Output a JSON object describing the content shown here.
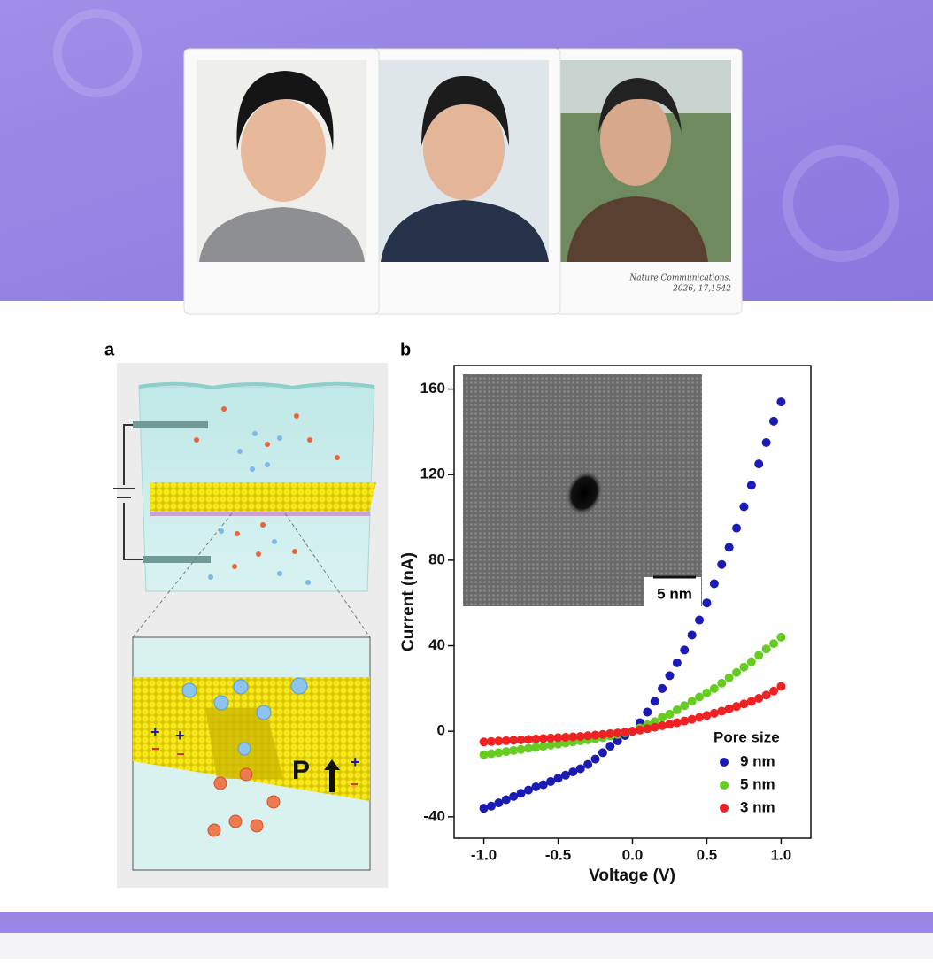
{
  "banner": {
    "caption_lines": [
      "Nature Communications,",
      "2026, 17,1542"
    ]
  },
  "panels": [
    "a",
    "b"
  ],
  "diagram": {
    "polarization_label": "P",
    "charge_label": "+"
  },
  "inset": {
    "scale_bar": "5 nm"
  },
  "chart_data": {
    "type": "scatter",
    "x_label": "Voltage (V)",
    "y_label": "Current (nA)",
    "legend_title": "Pore size",
    "legend_position": "lower right",
    "xlim": [
      -1.2,
      1.2
    ],
    "ylim": [
      -50,
      171
    ],
    "xticks": [
      {
        "value": -1,
        "label": "-1.0"
      },
      {
        "value": -0.5,
        "label": "-0.5"
      },
      {
        "value": 0,
        "label": "0.0"
      },
      0.5,
      {
        "value": 1,
        "label": "1.0"
      }
    ],
    "yticks": [
      -40,
      0,
      40,
      80,
      120,
      160
    ],
    "x": [
      -1,
      -0.95,
      -0.9,
      -0.85,
      -0.8,
      -0.75,
      -0.7,
      -0.65,
      -0.6,
      -0.55,
      -0.5,
      -0.45,
      -0.4,
      -0.35,
      -0.3,
      -0.25,
      -0.2,
      -0.15,
      -0.1,
      -0.05,
      0,
      0.05,
      0.1,
      0.15,
      0.2,
      0.25,
      0.3,
      0.35,
      0.4,
      0.45,
      0.5,
      0.55,
      0.6,
      0.65,
      0.7,
      0.75,
      0.8,
      0.85,
      0.9,
      0.95,
      1
    ],
    "series": [
      {
        "name": "9 nm",
        "color": "#1a1ab4",
        "values": [
          -36,
          -35,
          -33.5,
          -32,
          -30.5,
          -29,
          -27.5,
          -26,
          -25,
          -23.5,
          -22,
          -20.5,
          -19,
          -17.5,
          -15.5,
          -13,
          -10,
          -7,
          -4.5,
          -2,
          0,
          4,
          9,
          14,
          20,
          26,
          32,
          38,
          45,
          52,
          60,
          69,
          78,
          86,
          95,
          105,
          115,
          125,
          135,
          145,
          154
        ]
      },
      {
        "name": "5 nm",
        "color": "#66cc22",
        "values": [
          -11,
          -10.5,
          -10,
          -9.5,
          -9,
          -8.5,
          -8,
          -7.5,
          -7,
          -6.5,
          -6,
          -5.5,
          -5,
          -4.5,
          -4,
          -3.5,
          -3,
          -2.2,
          -1.5,
          -0.7,
          0,
          1.5,
          3,
          4.5,
          6.5,
          8,
          10,
          12,
          14,
          16,
          18,
          20,
          22.5,
          25,
          27.5,
          30,
          32.5,
          35.5,
          38.5,
          41,
          44
        ]
      },
      {
        "name": "3 nm",
        "color": "#ee2222",
        "values": [
          -5,
          -4.8,
          -4.6,
          -4.4,
          -4.2,
          -4,
          -3.8,
          -3.6,
          -3.4,
          -3.2,
          -3,
          -2.8,
          -2.6,
          -2.4,
          -2.1,
          -1.8,
          -1.5,
          -1.1,
          -0.8,
          -0.4,
          0,
          0.6,
          1.2,
          1.9,
          2.6,
          3.3,
          4,
          4.8,
          5.6,
          6.5,
          7.4,
          8.4,
          9.4,
          10.5,
          11.6,
          12.8,
          14,
          15.4,
          16.9,
          18.8,
          21
        ]
      }
    ]
  }
}
